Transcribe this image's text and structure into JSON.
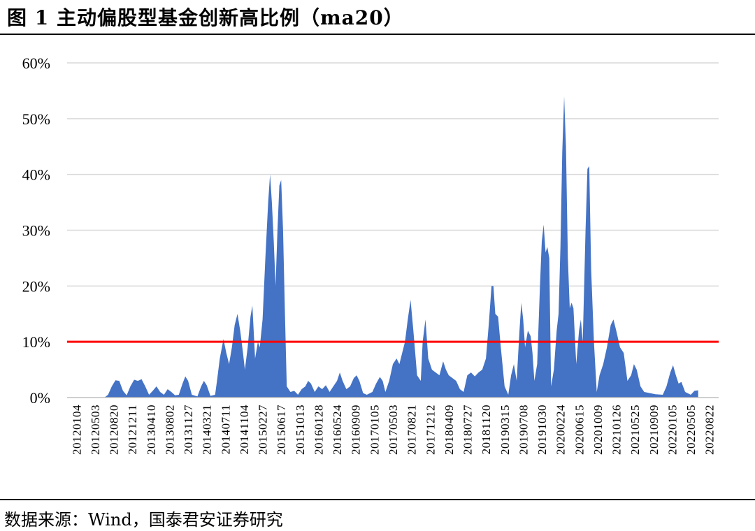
{
  "header": {
    "title": "图 1 主动偏股型基金创新高比例（ma20）"
  },
  "footer": {
    "source": "数据来源：Wind，国泰君安证券研究"
  },
  "colors": {
    "series": "#4472C4",
    "threshold": "#FF0000",
    "grid": "#D9D9D9"
  },
  "chart_data": {
    "type": "area",
    "title": "",
    "xlabel": "",
    "ylabel": "",
    "ylim": [
      0,
      0.6
    ],
    "yticks": [
      0,
      0.1,
      0.2,
      0.3,
      0.4,
      0.5,
      0.6
    ],
    "ytick_labels": [
      "0%",
      "10%",
      "20%",
      "30%",
      "40%",
      "50%",
      "60%"
    ],
    "grid": true,
    "legend": "none",
    "x_tick_labels": [
      "20120104",
      "20120503",
      "20120820",
      "20121211",
      "20130410",
      "20130802",
      "20131127",
      "20140321",
      "20140711",
      "20141104",
      "20150227",
      "20150617",
      "20151013",
      "20160128",
      "20160524",
      "20160909",
      "20170105",
      "20170503",
      "20170821",
      "20171212",
      "20180409",
      "20180727",
      "20181120",
      "20190315",
      "20190708",
      "20191030",
      "20200224",
      "20200615",
      "20201009",
      "20210126",
      "20210525",
      "20210909",
      "20220105",
      "20220505",
      "20220822"
    ],
    "threshold": {
      "value": 0.1
    },
    "series": [
      {
        "points": [
          [
            0,
            0
          ],
          [
            2,
            0
          ],
          [
            2.2,
            0.005
          ],
          [
            2.4,
            0.02
          ],
          [
            2.6,
            0.031
          ],
          [
            2.8,
            0.03
          ],
          [
            3,
            0.012
          ],
          [
            3.2,
            0.004
          ],
          [
            3.4,
            0.02
          ],
          [
            3.6,
            0.032
          ],
          [
            3.8,
            0.03
          ],
          [
            4,
            0.033
          ],
          [
            4.2,
            0.02
          ],
          [
            4.4,
            0.005
          ],
          [
            4.6,
            0.012
          ],
          [
            4.8,
            0.02
          ],
          [
            5,
            0.01
          ],
          [
            5.2,
            0.005
          ],
          [
            5.4,
            0.015
          ],
          [
            5.6,
            0.01
          ],
          [
            5.8,
            0.004
          ],
          [
            6,
            0.005
          ],
          [
            6.2,
            0.025
          ],
          [
            6.35,
            0.038
          ],
          [
            6.5,
            0.03
          ],
          [
            6.7,
            0.005
          ],
          [
            7,
            0.002
          ],
          [
            7.2,
            0.02
          ],
          [
            7.35,
            0.03
          ],
          [
            7.5,
            0.022
          ],
          [
            7.7,
            0.003
          ],
          [
            7.95,
            0.005
          ],
          [
            8.05,
            0.03
          ],
          [
            8.2,
            0.07
          ],
          [
            8.4,
            0.105
          ],
          [
            8.55,
            0.08
          ],
          [
            8.7,
            0.06
          ],
          [
            8.85,
            0.09
          ],
          [
            9,
            0.13
          ],
          [
            9.15,
            0.15
          ],
          [
            9.3,
            0.12
          ],
          [
            9.45,
            0.08
          ],
          [
            9.55,
            0.05
          ],
          [
            9.7,
            0.09
          ],
          [
            9.85,
            0.145
          ],
          [
            9.95,
            0.165
          ],
          [
            10.1,
            0.07
          ],
          [
            10.25,
            0.1
          ],
          [
            10.35,
            0.09
          ],
          [
            10.5,
            0.14
          ],
          [
            10.65,
            0.25
          ],
          [
            10.8,
            0.35
          ],
          [
            10.9,
            0.4
          ],
          [
            11,
            0.35
          ],
          [
            11.1,
            0.28
          ],
          [
            11.2,
            0.2
          ],
          [
            11.3,
            0.3
          ],
          [
            11.4,
            0.38
          ],
          [
            11.5,
            0.39
          ],
          [
            11.6,
            0.3
          ],
          [
            11.7,
            0.15
          ],
          [
            11.8,
            0.02
          ],
          [
            12,
            0.01
          ],
          [
            12.2,
            0.012
          ],
          [
            12.4,
            0.005
          ],
          [
            12.6,
            0.015
          ],
          [
            12.8,
            0.02
          ],
          [
            12.95,
            0.03
          ],
          [
            13.1,
            0.025
          ],
          [
            13.3,
            0.01
          ],
          [
            13.5,
            0.02
          ],
          [
            13.7,
            0.015
          ],
          [
            13.9,
            0.022
          ],
          [
            14.1,
            0.01
          ],
          [
            14.3,
            0.02
          ],
          [
            14.5,
            0.03
          ],
          [
            14.65,
            0.045
          ],
          [
            14.8,
            0.03
          ],
          [
            15,
            0.015
          ],
          [
            15.2,
            0.02
          ],
          [
            15.4,
            0.035
          ],
          [
            15.55,
            0.04
          ],
          [
            15.7,
            0.03
          ],
          [
            15.9,
            0.008
          ],
          [
            16.1,
            0.005
          ],
          [
            16.4,
            0.01
          ],
          [
            16.6,
            0.025
          ],
          [
            16.8,
            0.037
          ],
          [
            16.95,
            0.03
          ],
          [
            17.1,
            0.01
          ],
          [
            17.3,
            0.03
          ],
          [
            17.5,
            0.06
          ],
          [
            17.7,
            0.07
          ],
          [
            17.85,
            0.06
          ],
          [
            18,
            0.08
          ],
          [
            18.15,
            0.1
          ],
          [
            18.3,
            0.14
          ],
          [
            18.45,
            0.175
          ],
          [
            18.6,
            0.12
          ],
          [
            18.8,
            0.04
          ],
          [
            19,
            0.03
          ],
          [
            19.1,
            0.1
          ],
          [
            19.25,
            0.14
          ],
          [
            19.4,
            0.07
          ],
          [
            19.6,
            0.05
          ],
          [
            19.8,
            0.045
          ],
          [
            20,
            0.04
          ],
          [
            20.2,
            0.065
          ],
          [
            20.35,
            0.05
          ],
          [
            20.5,
            0.04
          ],
          [
            20.7,
            0.035
          ],
          [
            20.9,
            0.03
          ],
          [
            21.1,
            0.015
          ],
          [
            21.3,
            0.01
          ],
          [
            21.5,
            0.04
          ],
          [
            21.7,
            0.045
          ],
          [
            21.9,
            0.038
          ],
          [
            22.1,
            0.045
          ],
          [
            22.3,
            0.05
          ],
          [
            22.5,
            0.07
          ],
          [
            22.65,
            0.13
          ],
          [
            22.8,
            0.2
          ],
          [
            22.9,
            0.2
          ],
          [
            23,
            0.15
          ],
          [
            23.15,
            0.145
          ],
          [
            23.3,
            0.09
          ],
          [
            23.5,
            0.02
          ],
          [
            23.7,
            0.005
          ],
          [
            23.85,
            0.04
          ],
          [
            24,
            0.06
          ],
          [
            24.15,
            0.03
          ],
          [
            24.3,
            0.12
          ],
          [
            24.4,
            0.17
          ],
          [
            24.5,
            0.14
          ],
          [
            24.6,
            0.09
          ],
          [
            24.75,
            0.12
          ],
          [
            24.9,
            0.11
          ],
          [
            25,
            0.08
          ],
          [
            25.1,
            0.03
          ],
          [
            25.25,
            0.06
          ],
          [
            25.4,
            0.2
          ],
          [
            25.5,
            0.28
          ],
          [
            25.6,
            0.31
          ],
          [
            25.7,
            0.26
          ],
          [
            25.8,
            0.27
          ],
          [
            25.9,
            0.25
          ],
          [
            26,
            0.02
          ],
          [
            26.15,
            0.05
          ],
          [
            26.3,
            0.12
          ],
          [
            26.4,
            0.15
          ],
          [
            26.5,
            0.27
          ],
          [
            26.6,
            0.44
          ],
          [
            26.7,
            0.54
          ],
          [
            26.8,
            0.45
          ],
          [
            26.9,
            0.25
          ],
          [
            27,
            0.16
          ],
          [
            27.1,
            0.17
          ],
          [
            27.2,
            0.16
          ],
          [
            27.35,
            0.06
          ],
          [
            27.5,
            0.12
          ],
          [
            27.6,
            0.14
          ],
          [
            27.7,
            0.1
          ],
          [
            27.85,
            0.3
          ],
          [
            27.95,
            0.41
          ],
          [
            28.05,
            0.415
          ],
          [
            28.15,
            0.23
          ],
          [
            28.3,
            0.1
          ],
          [
            28.45,
            0.01
          ],
          [
            28.6,
            0.04
          ],
          [
            28.8,
            0.06
          ],
          [
            29,
            0.09
          ],
          [
            29.2,
            0.13
          ],
          [
            29.35,
            0.14
          ],
          [
            29.5,
            0.12
          ],
          [
            29.7,
            0.09
          ],
          [
            29.9,
            0.08
          ],
          [
            30.1,
            0.03
          ],
          [
            30.3,
            0.04
          ],
          [
            30.45,
            0.06
          ],
          [
            30.6,
            0.05
          ],
          [
            30.8,
            0.02
          ],
          [
            31,
            0.01
          ],
          [
            31.3,
            0.008
          ],
          [
            31.6,
            0.006
          ],
          [
            32,
            0.005
          ],
          [
            32.2,
            0.02
          ],
          [
            32.4,
            0.045
          ],
          [
            32.55,
            0.058
          ],
          [
            32.7,
            0.04
          ],
          [
            32.85,
            0.025
          ],
          [
            33,
            0.028
          ],
          [
            33.2,
            0.01
          ],
          [
            33.5,
            0.005
          ],
          [
            33.7,
            0.012
          ],
          [
            33.9,
            0.013
          ]
        ]
      }
    ]
  }
}
